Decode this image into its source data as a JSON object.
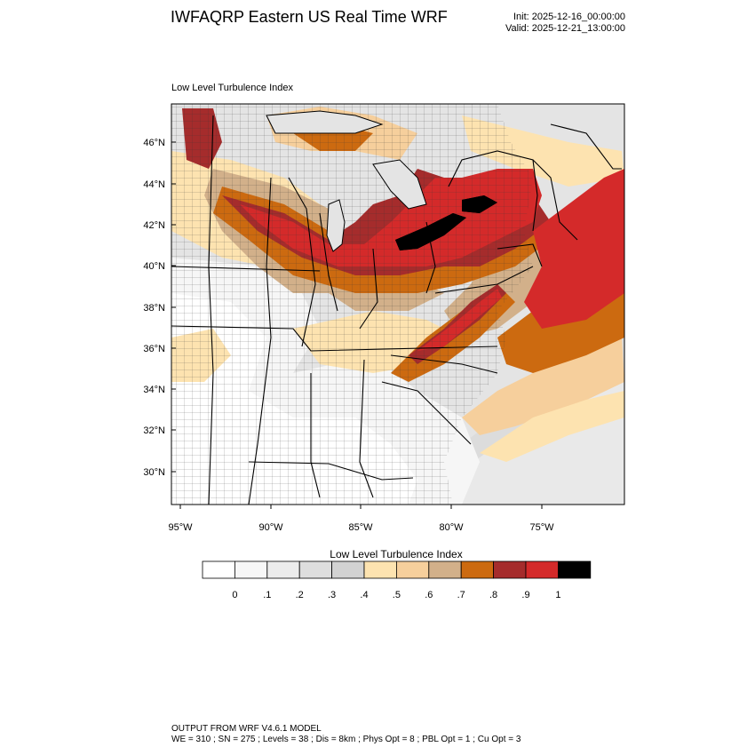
{
  "header": {
    "title": "IWFAQRP Eastern US Real Time WRF",
    "init": "Init: 2025-12-16_00:00:00",
    "valid": "Valid: 2025-12-21_13:00:00"
  },
  "panel": {
    "field_title": "Low Level Turbulence Index"
  },
  "map": {
    "lat_labels": [
      "46°N",
      "44°N",
      "42°N",
      "40°N",
      "38°N",
      "36°N",
      "34°N",
      "32°N",
      "30°N"
    ],
    "lon_labels": [
      "95°W",
      "90°W",
      "85°W",
      "80°W",
      "75°W"
    ]
  },
  "colorbar": {
    "title": "Low Level Turbulence Index",
    "tick_labels": [
      "0",
      ".1",
      ".2",
      ".3",
      ".4",
      ".5",
      ".6",
      ".7",
      ".8",
      ".9",
      "1"
    ],
    "colors": [
      "#ffffff",
      "#f7f7f7",
      "#ececec",
      "#dedede",
      "#d2d2d2",
      "#fde3b0",
      "#f6cf9c",
      "#d2b08a",
      "#cc6a10",
      "#a52c2c",
      "#d42a2a",
      "#000000"
    ]
  },
  "footer": {
    "line1": "OUTPUT FROM WRF V4.6.1 MODEL",
    "line2": "WE = 310 ; SN = 275 ; Levels = 38 ; Dis = 8km ; Phys Opt = 8 ; PBL Opt = 1 ; Cu Opt = 3"
  }
}
